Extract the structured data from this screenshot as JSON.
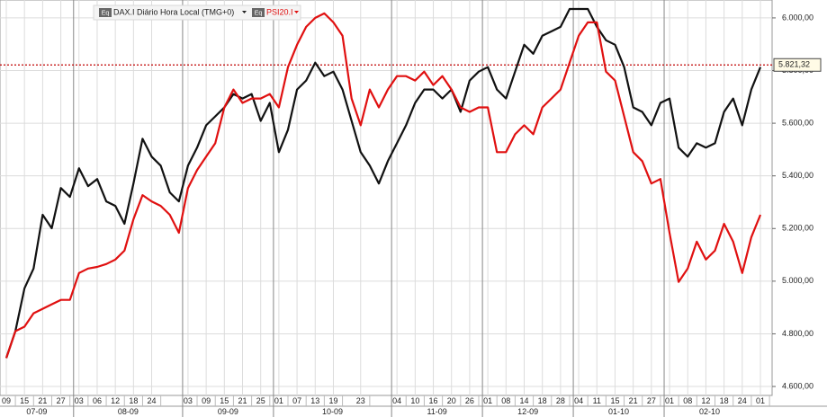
{
  "chart_data": {
    "type": "line",
    "legend_icon_text": "Eq",
    "categories": [
      "09",
      null,
      "15",
      null,
      "21",
      null,
      "27",
      null,
      "03",
      null,
      "06",
      null,
      "12",
      null,
      "18",
      null,
      "24",
      null,
      null,
      null,
      "03",
      null,
      "09",
      null,
      "15",
      null,
      "21",
      null,
      "25",
      null,
      "01",
      null,
      "07",
      null,
      "13",
      null,
      "19",
      null,
      null,
      "23",
      null,
      null,
      null,
      "04",
      null,
      "10",
      null,
      "16",
      null,
      "20",
      null,
      "26",
      null,
      "01",
      null,
      "08",
      null,
      "14",
      null,
      "18",
      null,
      "28",
      null,
      "04",
      null,
      "11",
      null,
      "15",
      null,
      "21",
      null,
      "27",
      null,
      "01",
      null,
      "08",
      null,
      "12",
      null,
      "18",
      null,
      "24",
      null,
      "01"
    ],
    "x_groups": [
      "07-09",
      "08-09",
      "09-09",
      "10-09",
      "11-09",
      "12-09",
      "01-10",
      "02-10"
    ],
    "series": [
      {
        "name": "DAX.I Diário Hora Local (TMG+0)",
        "color": "#111111",
        "values": [
          4708,
          4810,
          4973,
          5048,
          5252,
          5201,
          5354,
          5320,
          5429,
          5361,
          5388,
          5303,
          5286,
          5218,
          5371,
          5541,
          5473,
          5439,
          5337,
          5303,
          5439,
          5507,
          5592,
          5626,
          5660,
          5711,
          5694,
          5711,
          5609,
          5677,
          5490,
          5575,
          5728,
          5762,
          5830,
          5779,
          5796,
          5728,
          5609,
          5490,
          5439,
          5371,
          5456,
          5524,
          5592,
          5677,
          5728,
          5728,
          5694,
          5728,
          5643,
          5762,
          5796,
          5813,
          5728,
          5694,
          5796,
          5898,
          5864,
          5932,
          5949,
          5966,
          6034,
          6034,
          6034,
          5966,
          5915,
          5898,
          5813,
          5660,
          5643,
          5592,
          5677,
          5694,
          5507,
          5473,
          5524,
          5507,
          5524,
          5643,
          5694,
          5592,
          5728,
          5813
        ]
      },
      {
        "name": "PSI20.I",
        "color": "#e01010",
        "values": [
          4708,
          4810,
          4827,
          4878,
          4895,
          4912,
          4929,
          4929,
          5031,
          5048,
          5054,
          5065,
          5082,
          5116,
          5235,
          5327,
          5303,
          5286,
          5252,
          5184,
          5354,
          5422,
          5473,
          5524,
          5660,
          5728,
          5677,
          5694,
          5694,
          5711,
          5660,
          5813,
          5898,
          5966,
          6000,
          6017,
          5983,
          5932,
          5694,
          5592,
          5728,
          5660,
          5728,
          5779,
          5779,
          5762,
          5796,
          5745,
          5779,
          5728,
          5660,
          5643,
          5660,
          5660,
          5490,
          5490,
          5558,
          5592,
          5558,
          5660,
          5694,
          5728,
          5830,
          5932,
          5983,
          5983,
          5796,
          5762,
          5626,
          5490,
          5456,
          5371,
          5388,
          5184,
          4997,
          5048,
          5150,
          5082,
          5116,
          5218,
          5150,
          5031,
          5167,
          5252
        ]
      }
    ],
    "ylim": [
      4566,
      6068
    ],
    "yticks": [
      {
        "value": 4600,
        "label": "4.600,00"
      },
      {
        "value": 4800,
        "label": "4.800,00"
      },
      {
        "value": 5000,
        "label": "5.000,00"
      },
      {
        "value": 5200,
        "label": "5.200,00"
      },
      {
        "value": 5400,
        "label": "5.400,00"
      },
      {
        "value": 5600,
        "label": "5.600,00"
      },
      {
        "value": 5800,
        "label": "5.800,00"
      },
      {
        "value": 6000,
        "label": "6.000,00"
      }
    ],
    "grid": true,
    "reference_line": {
      "value": 5821.32,
      "label": "5.821,32",
      "color": "#c00000"
    }
  }
}
